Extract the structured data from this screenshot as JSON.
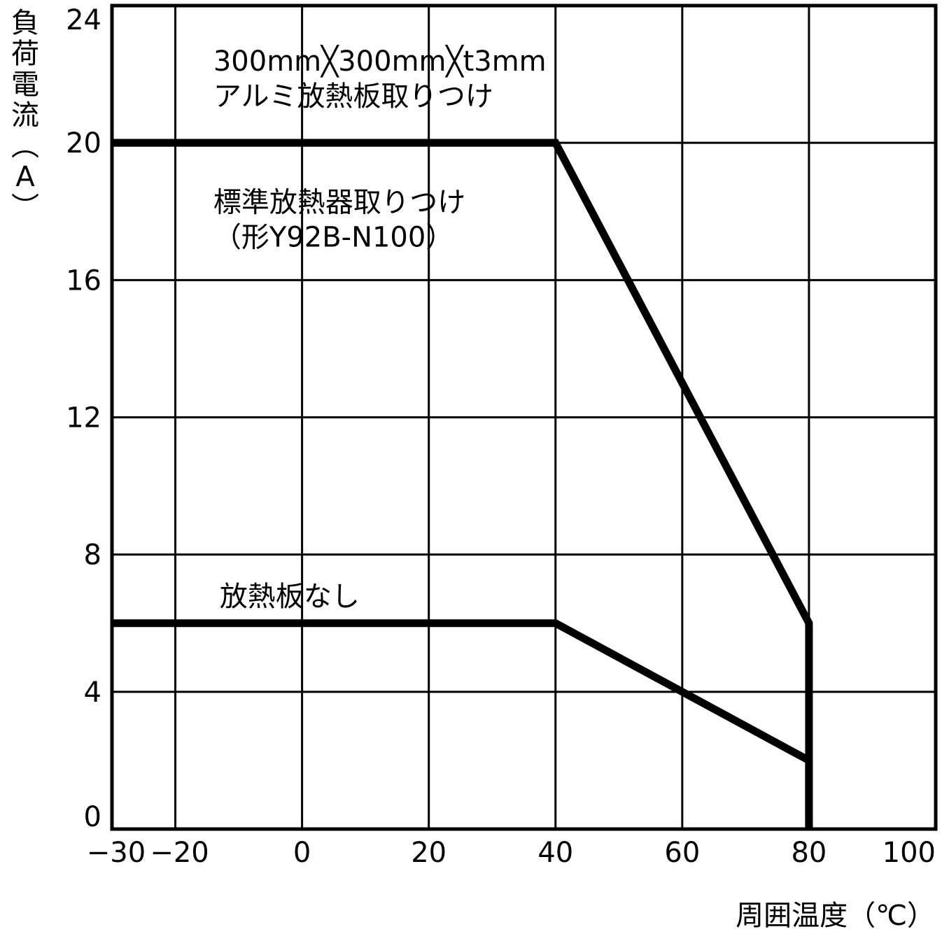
{
  "chart_data": {
    "type": "line",
    "title": "",
    "xlabel": "周囲温度（℃）",
    "ylabel": "負荷電流（A）",
    "xlim": [
      -30,
      100
    ],
    "ylim": [
      0,
      24
    ],
    "xticks": [
      -30,
      -20,
      0,
      20,
      40,
      60,
      80,
      100
    ],
    "xtick_labels": [
      "−30",
      "−20",
      "0",
      "20",
      "40",
      "60",
      "80",
      "100"
    ],
    "yticks": [
      0,
      4,
      8,
      12,
      16,
      20,
      24
    ],
    "ytick_labels": [
      "0",
      "4",
      "8",
      "12",
      "16",
      "20",
      "24"
    ],
    "grid": true,
    "series": [
      {
        "name": "300mm×300mm×t3mm アルミ放熱板取りつけ",
        "x": [
          -30,
          40
        ],
        "y": [
          20,
          20
        ]
      },
      {
        "name": "標準放熱器取りつけ（形Y92B-N100）",
        "x": [
          -30,
          40,
          80,
          80
        ],
        "y": [
          20,
          20,
          6,
          0
        ]
      },
      {
        "name": "放熱板なし",
        "x": [
          -30,
          40,
          80,
          80
        ],
        "y": [
          6,
          6,
          2,
          0
        ]
      }
    ],
    "annotations": [
      {
        "lines": [
          "300mm╳300mm╳t3mm",
          "アルミ放熱板取りつけ"
        ],
        "x": -14,
        "y": 22.1
      },
      {
        "lines": [
          "標準放熱器取りつけ",
          "（形Y92B-N100）"
        ],
        "x": -14,
        "y": 18.0
      },
      {
        "lines": [
          "放熱板なし"
        ],
        "x": -13,
        "y": 6.5
      }
    ]
  }
}
